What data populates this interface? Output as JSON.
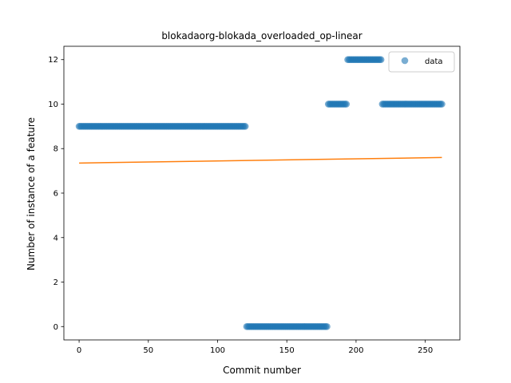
{
  "chart_data": {
    "type": "scatter",
    "title": "blokadaorg-blokada_overloaded_op-linear",
    "xlabel": "Commit number",
    "ylabel": "Number of instance of a feature",
    "xlim": [
      -11,
      275
    ],
    "ylim": [
      -0.6,
      12.6
    ],
    "xticks": [
      0,
      50,
      100,
      150,
      200,
      250
    ],
    "yticks": [
      0,
      2,
      4,
      6,
      8,
      10,
      12
    ],
    "legend": {
      "position": "top-right",
      "entries": [
        "data"
      ]
    },
    "grid": false,
    "colors": {
      "data": "#1f77b4",
      "fit": "#ff7f0e"
    },
    "series": [
      {
        "name": "data",
        "kind": "scatter",
        "segments": [
          {
            "x_start": 0,
            "x_end": 120,
            "y": 9
          },
          {
            "x_start": 121,
            "x_end": 179,
            "y": 0
          },
          {
            "x_start": 180,
            "x_end": 193,
            "y": 10
          },
          {
            "x_start": 194,
            "x_end": 218,
            "y": 12
          },
          {
            "x_start": 219,
            "x_end": 262,
            "y": 10
          }
        ]
      },
      {
        "kind": "line",
        "x": [
          0,
          262
        ],
        "y": [
          7.35,
          7.6
        ]
      }
    ]
  }
}
